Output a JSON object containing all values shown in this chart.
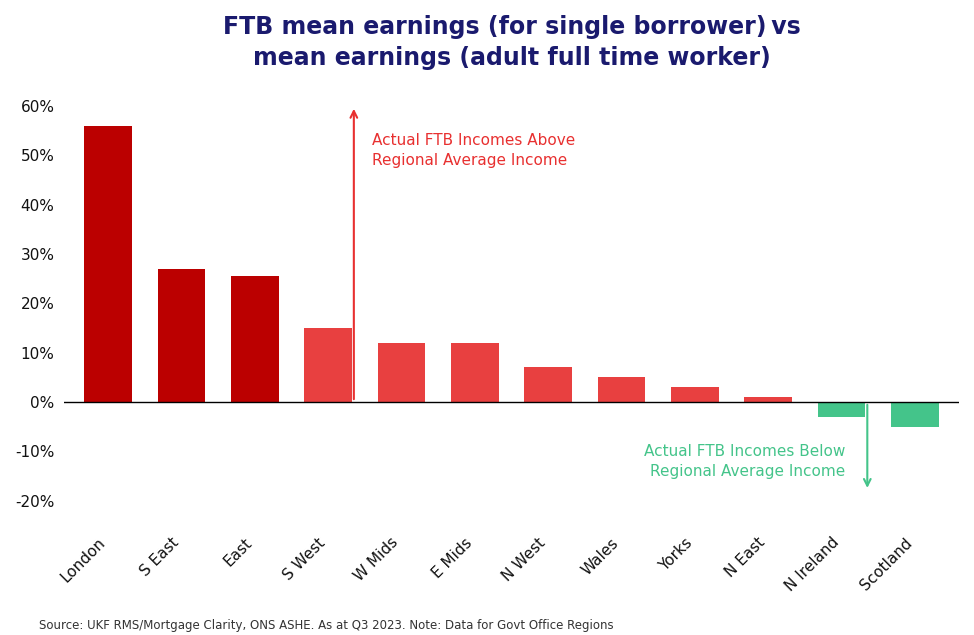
{
  "categories": [
    "London",
    "S East",
    "East",
    "S West",
    "W Mids",
    "E Mids",
    "N West",
    "Wales",
    "Yorks",
    "N East",
    "N Ireland",
    "Scotland"
  ],
  "values": [
    56.0,
    27.0,
    25.5,
    15.0,
    12.0,
    12.0,
    7.0,
    5.0,
    3.0,
    1.0,
    -3.0,
    -5.0
  ],
  "title_line1": "FTB mean earnings (for single borrower) vs",
  "title_line2": "mean earnings (adult full time worker)",
  "title_color": "#1a1a6e",
  "annotation_above_text": "Actual FTB Incomes Above\nRegional Average Income",
  "annotation_below_text": "Actual FTB Incomes Below\nRegional Average Income",
  "annotation_color_above": "#e83030",
  "annotation_color_below": "#44c48a",
  "source_text": "Source: UKF RMS/Mortgage Clarity, ONS ASHE. As at Q3 2023. Note: Data for Govt Office Regions",
  "ylim": [
    -25,
    65
  ],
  "yticks": [
    -20,
    -10,
    0,
    10,
    20,
    30,
    40,
    50,
    60
  ],
  "background_color": "#ffffff",
  "dark_red": "#bb0000",
  "light_red": "#e84040",
  "green": "#44c48a"
}
